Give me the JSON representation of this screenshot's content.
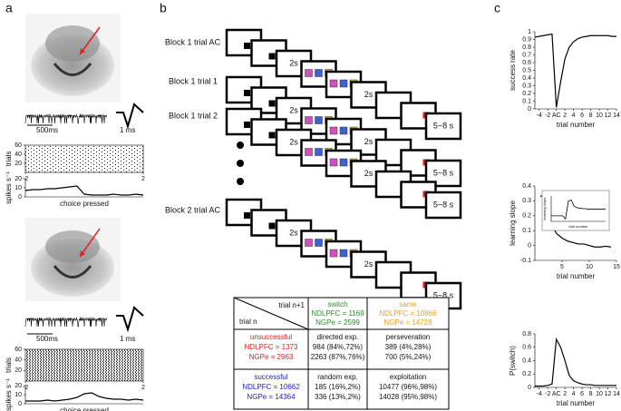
{
  "panels": [
    "a",
    "b",
    "c"
  ],
  "trial_diagram": {
    "rows": [
      "Block 1 trial AC",
      "Block 1 trial 1",
      "Block 1 trial 2",
      "Block 2 trial AC"
    ],
    "delay": "2s",
    "iti": "5~8 s"
  },
  "scale_labels": {
    "trace": "500ms",
    "waveform": "1 ms"
  },
  "table": {
    "col_title": "trial n+1",
    "row_title": "trial n",
    "columns": [
      {
        "name": "switch",
        "color": "#2e8b2e",
        "n_dlpfc": "NDLPFC = 1169",
        "n_gpe": "NGPe = 2599"
      },
      {
        "name": "same",
        "color": "#e8a020",
        "n_dlpfc": "NDLPFC = 10866",
        "n_gpe": "NGPe = 14728"
      }
    ],
    "rows": [
      {
        "name": "unsuccessful",
        "color": "#e02020",
        "n_dlpfc": "NDLPFC = 1373",
        "n_gpe": "NGPe = 2963",
        "cells": [
          {
            "name": "directed exp.",
            "dlpfc": "984 (84%,72%)",
            "gpe": "2263 (87%,76%)"
          },
          {
            "name": "perseveration",
            "dlpfc": "389 (4%,28%)",
            "gpe": "700 (5%,24%)"
          }
        ]
      },
      {
        "name": "successful",
        "color": "#2020d0",
        "n_dlpfc": "NDLPFC = 10662",
        "n_gpe": "NGPe = 14364",
        "cells": [
          {
            "name": "random exp.",
            "dlpfc": "185 (16%,2%)",
            "gpe": "336 (13%,2%)"
          },
          {
            "name": "exploitation",
            "dlpfc": "10477 (96%,98%)",
            "gpe": "14028 (95%,98%)"
          }
        ]
      }
    ]
  },
  "chart_data": [
    {
      "type": "line",
      "ylabel": "spikes s⁻¹",
      "xlabel": "choice pressed",
      "color": "#000",
      "xlim": [
        -2,
        2
      ],
      "ylim": [
        0,
        20
      ],
      "yticks": [
        0,
        10,
        20
      ],
      "x": [
        -2,
        -1.75,
        -1.5,
        -1.25,
        -1,
        -0.75,
        -0.5,
        -0.25,
        0,
        0.25,
        0.5,
        0.75,
        1,
        1.25,
        1.5,
        1.75,
        2
      ],
      "values": [
        7,
        8,
        8,
        9,
        9,
        10,
        11,
        12,
        3,
        2,
        2,
        2,
        3,
        2,
        2,
        3,
        2
      ]
    },
    {
      "type": "raster",
      "ylabel": "trials",
      "xlim": [
        -2,
        2
      ],
      "xticks": [
        -2,
        2
      ],
      "ylim": [
        0,
        60
      ],
      "yticks": [
        20,
        40,
        60
      ]
    },
    {
      "type": "line",
      "ylabel": "spikes s⁻¹",
      "xlabel": "choice pressed",
      "color": "#000",
      "xlim": [
        -2,
        2
      ],
      "ylim": [
        0,
        20
      ],
      "yticks": [
        0,
        10,
        20
      ],
      "x": [
        -2,
        -1.75,
        -1.5,
        -1.25,
        -1,
        -0.75,
        -0.5,
        -0.25,
        0,
        0.25,
        0.5,
        0.75,
        1,
        1.25,
        1.5,
        1.75,
        2
      ],
      "values": [
        3,
        3,
        3,
        4,
        3,
        4,
        5,
        7,
        11,
        12,
        8,
        6,
        5,
        5,
        4,
        5,
        4
      ]
    },
    {
      "type": "raster",
      "ylabel": "trials",
      "xlim": [
        -2,
        2
      ],
      "xticks": [
        -2,
        2
      ],
      "ylim": [
        0,
        60
      ],
      "yticks": [
        20,
        40,
        60
      ]
    },
    {
      "type": "line",
      "ylabel": "success rate",
      "xlabel": "trial number",
      "color": "#000",
      "xlim": [
        -5,
        14
      ],
      "ylim": [
        0,
        1
      ],
      "yticks": [
        0,
        0.1,
        0.2,
        0.3,
        0.4,
        0.5,
        0.6,
        0.7,
        0.8,
        0.9,
        1
      ],
      "xticks": [
        -4,
        -2,
        {
          "value": 0,
          "label": "AC"
        },
        2,
        4,
        6,
        8,
        10,
        12,
        14
      ],
      "x": [
        -5,
        -4,
        -3,
        -2,
        -1,
        0,
        1,
        2,
        3,
        4,
        5,
        6,
        7,
        8,
        9,
        10,
        11,
        12,
        13,
        14
      ],
      "values": [
        0.93,
        0.94,
        0.95,
        0.96,
        0.97,
        0.02,
        0.35,
        0.65,
        0.8,
        0.87,
        0.91,
        0.93,
        0.94,
        0.95,
        0.95,
        0.95,
        0.95,
        0.95,
        0.94,
        0.94
      ]
    },
    {
      "type": "line",
      "ylabel": "learning slope",
      "xlabel": "trial number",
      "color": "#000",
      "xlim": [
        0,
        15
      ],
      "ylim": [
        -0.1,
        0.4
      ],
      "yticks": [
        -0.1,
        0,
        0.1,
        0.2,
        0.3,
        0.4
      ],
      "xticks": [
        5,
        10,
        15
      ],
      "x": [
        1,
        2,
        3,
        4,
        5,
        6,
        7,
        8,
        9,
        10,
        11,
        12,
        13,
        14
      ],
      "values": [
        0.33,
        0.34,
        0.14,
        0.08,
        0.05,
        0.03,
        0.02,
        0.01,
        0.01,
        0,
        -0.01,
        -0.01,
        -0.005,
        -0.01
      ]
    },
    {
      "type": "line",
      "ylabel": "learning slope",
      "xlabel": "trial number",
      "color": "#000",
      "xlim": [
        -5,
        14
      ],
      "ylim": [
        -0.1,
        0.4
      ],
      "x": [
        -5,
        -4,
        -3,
        -2,
        -1,
        0,
        1,
        2,
        3,
        4,
        5,
        6,
        7,
        8,
        9,
        10,
        11,
        12,
        13,
        14
      ],
      "values": [
        0.01,
        0.01,
        0.01,
        0.01,
        0.01,
        -0.05,
        0.3,
        0.32,
        0.2,
        0.17,
        0.16,
        0.15,
        0.15,
        0.14,
        0.14,
        0.14,
        0.14,
        0.14,
        0.14,
        0.14
      ]
    },
    {
      "type": "line",
      "ylabel": "P(switch)",
      "xlabel": "trial number",
      "color": "#000",
      "xlim": [
        -5,
        14
      ],
      "ylim": [
        0,
        0.8
      ],
      "yticks": [
        0,
        0.2,
        0.4,
        0.6,
        0.8
      ],
      "xticks": [
        -4,
        -2,
        {
          "value": 0,
          "label": "AC"
        },
        2,
        4,
        6,
        8,
        10,
        12,
        14
      ],
      "x": [
        -5,
        -4,
        -3,
        -2,
        -1,
        0,
        1,
        2,
        3,
        4,
        5,
        6,
        7,
        8,
        9,
        10,
        11,
        12,
        13,
        14
      ],
      "values": [
        0.02,
        0.02,
        0.02,
        0.03,
        0.05,
        0.72,
        0.6,
        0.4,
        0.18,
        0.1,
        0.07,
        0.05,
        0.04,
        0.04,
        0.03,
        0.03,
        0.03,
        0.03,
        0.03,
        0.03
      ]
    }
  ]
}
